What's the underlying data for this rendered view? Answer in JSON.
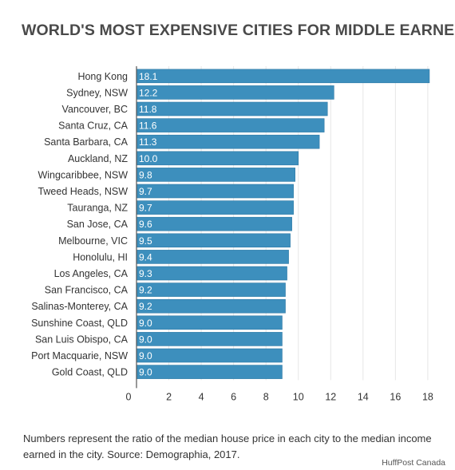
{
  "title": "WORLD'S MOST EXPENSIVE CITIES FOR MIDDLE EARNERS",
  "caption": "Numbers represent the ratio of the median house price in each city to the median income earned in the city. Source: Demographia, 2017.",
  "credit": "HuffPost Canada",
  "colors": {
    "bar": "#3d8fbd",
    "bar_edge": "#2f7aa6",
    "label": "#333333",
    "grid": "#e6e6e6"
  },
  "chart_data": {
    "type": "bar",
    "orientation": "horizontal",
    "categories": [
      "Hong Kong",
      "Sydney, NSW",
      "Vancouver, BC",
      "Santa Cruz, CA",
      "Santa Barbara, CA",
      "Auckland, NZ",
      "Wingcaribbee, NSW",
      "Tweed Heads, NSW",
      "Tauranga, NZ",
      "San Jose, CA",
      "Melbourne, VIC",
      "Honolulu, HI",
      "Los Angeles, CA",
      "San Francisco, CA",
      "Salinas-Monterey, CA",
      "Sunshine Coast, QLD",
      "San Luis Obispo, CA",
      "Port Macquarie, NSW",
      "Gold Coast, QLD"
    ],
    "values": [
      18.1,
      12.2,
      11.8,
      11.6,
      11.3,
      10.0,
      9.8,
      9.7,
      9.7,
      9.6,
      9.5,
      9.4,
      9.3,
      9.2,
      9.2,
      9.0,
      9.0,
      9.0,
      9.0
    ],
    "value_labels": [
      "18.1",
      "12.2",
      "11.8",
      "11.6",
      "11.3",
      "10.0",
      "9.8",
      "9.7",
      "9.7",
      "9.6",
      "9.5",
      "9.4",
      "9.3",
      "9.2",
      "9.2",
      "9.0",
      "9.0",
      "9.0",
      "9.0"
    ],
    "xticks": [
      0,
      2,
      4,
      6,
      8,
      10,
      12,
      14,
      16,
      18
    ],
    "xlim": [
      0,
      18.3
    ],
    "grid": true
  }
}
